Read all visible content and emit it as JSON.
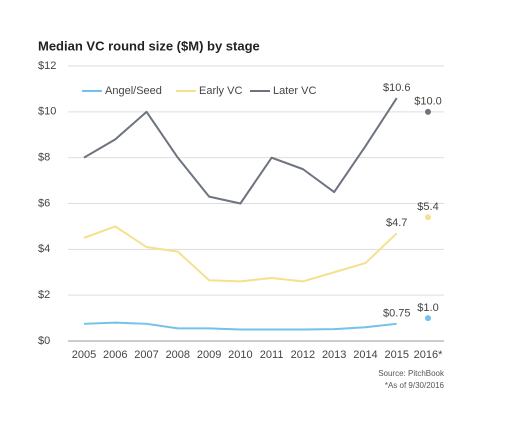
{
  "chart_data": {
    "type": "line",
    "title": "Median VC round size ($M) by stage",
    "categories": [
      "2005",
      "2006",
      "2007",
      "2008",
      "2009",
      "2010",
      "2011",
      "2012",
      "2013",
      "2014",
      "2015",
      "2016*"
    ],
    "series": [
      {
        "name": "Angel/Seed",
        "color": "#74c1ea",
        "values": [
          0.75,
          0.8,
          0.75,
          0.55,
          0.55,
          0.5,
          0.5,
          0.5,
          0.52,
          0.6,
          0.75,
          1.0
        ],
        "value_labels": [
          null,
          null,
          null,
          null,
          null,
          null,
          null,
          null,
          null,
          null,
          "$0.75",
          "$1.0"
        ]
      },
      {
        "name": "Early VC",
        "color": "#f6e08e",
        "values": [
          4.5,
          5.0,
          4.1,
          3.9,
          2.65,
          2.6,
          2.75,
          2.6,
          3.0,
          3.4,
          4.7,
          5.4
        ],
        "value_labels": [
          null,
          null,
          null,
          null,
          null,
          null,
          null,
          null,
          null,
          null,
          "$4.7",
          "$5.4"
        ]
      },
      {
        "name": "Later VC",
        "color": "#6d7380",
        "values": [
          8.0,
          8.8,
          10.0,
          8.0,
          6.3,
          6.0,
          8.0,
          7.5,
          6.5,
          8.5,
          10.6,
          10.0
        ],
        "value_labels": [
          null,
          null,
          null,
          null,
          null,
          null,
          null,
          null,
          null,
          null,
          "$10.6",
          "$10.0"
        ]
      }
    ],
    "ylim": [
      0,
      12
    ],
    "yticks": [
      {
        "value": 0,
        "label": "$0"
      },
      {
        "value": 2,
        "label": "$2"
      },
      {
        "value": 4,
        "label": "$4"
      },
      {
        "value": 6,
        "label": "$6"
      },
      {
        "value": 8,
        "label": "$8"
      },
      {
        "value": 10,
        "label": "$10"
      },
      {
        "value": 12,
        "label": "$12"
      }
    ],
    "grid": true,
    "legend": "top",
    "source": "Source: PitchBook",
    "note": "*As of 9/30/2016"
  }
}
